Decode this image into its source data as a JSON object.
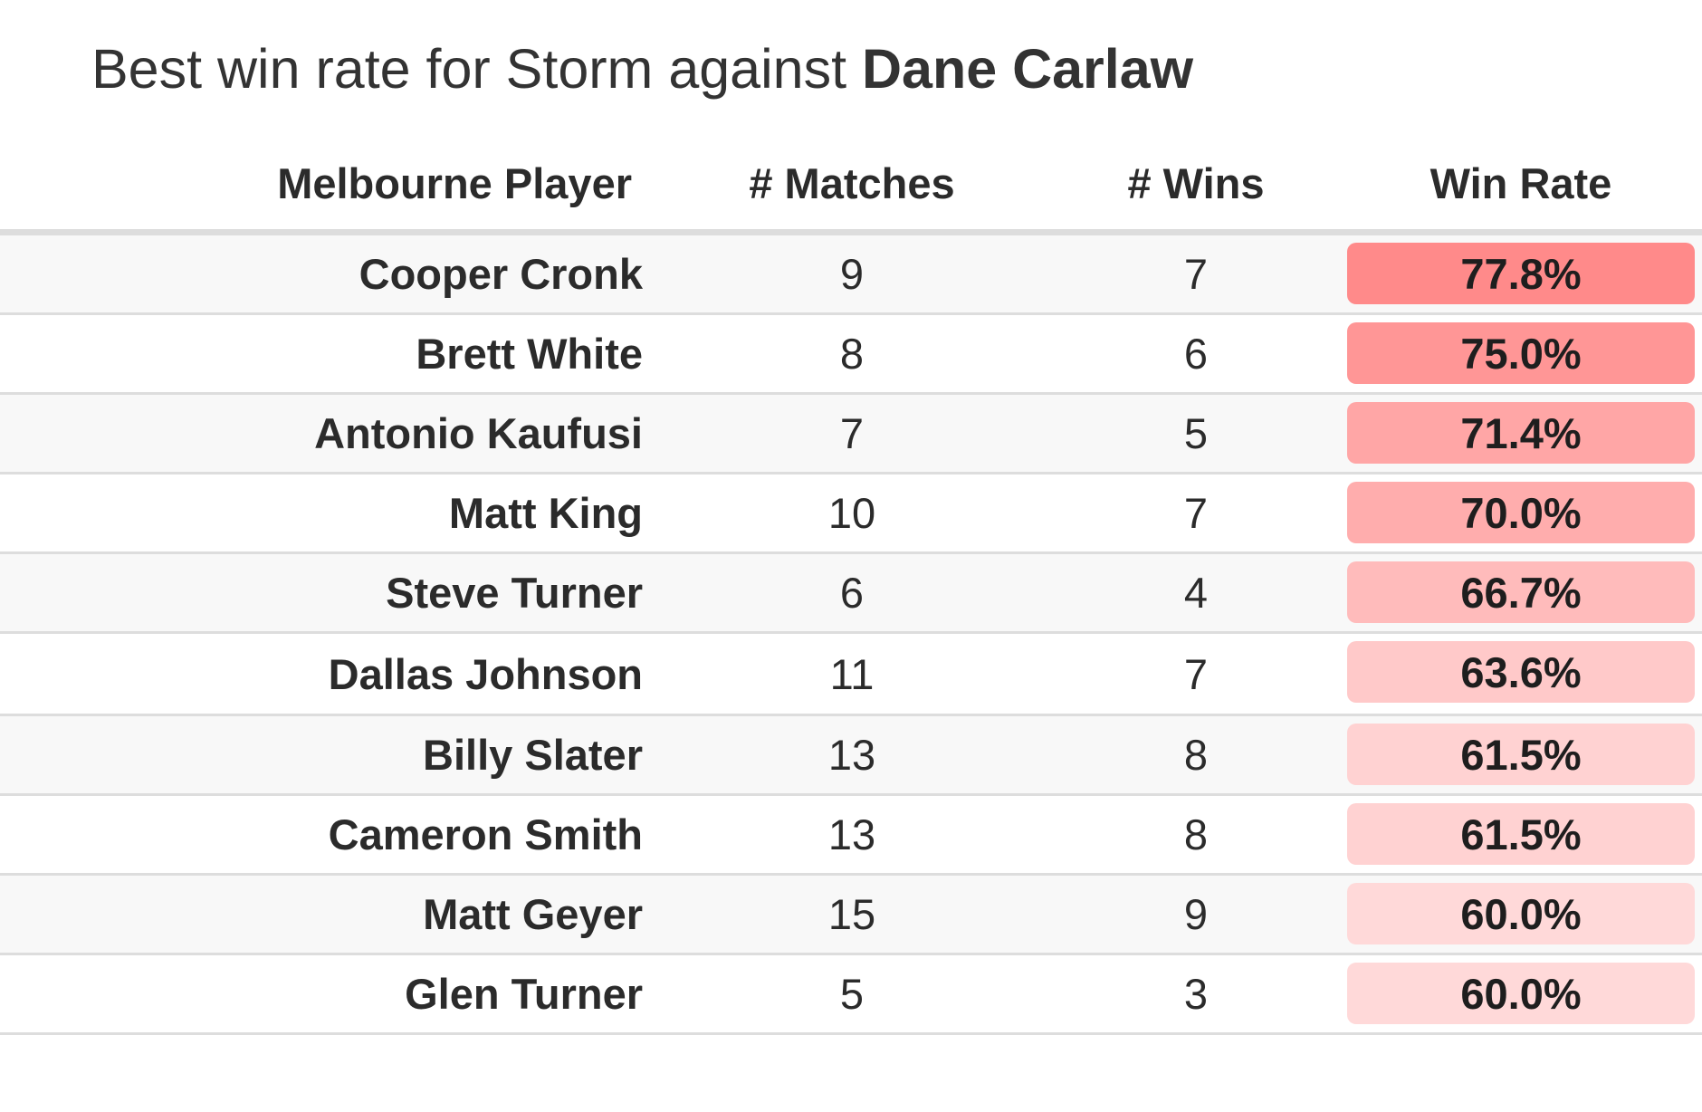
{
  "title": {
    "prefix": "Best win rate for Storm against ",
    "name": "Dane Carlaw"
  },
  "chart_data": {
    "type": "table",
    "columns": [
      "Melbourne Player",
      "# Matches",
      "# Wins",
      "Win Rate"
    ],
    "rows": [
      {
        "player": "Cooper Cronk",
        "matches": "9",
        "wins": "7",
        "win_rate": "77.8%",
        "rate_value": 77.8
      },
      {
        "player": "Brett White",
        "matches": "8",
        "wins": "6",
        "win_rate": "75.0%",
        "rate_value": 75.0
      },
      {
        "player": "Antonio Kaufusi",
        "matches": "7",
        "wins": "5",
        "win_rate": "71.4%",
        "rate_value": 71.4
      },
      {
        "player": "Matt King",
        "matches": "10",
        "wins": "7",
        "win_rate": "70.0%",
        "rate_value": 70.0
      },
      {
        "player": "Steve Turner",
        "matches": "6",
        "wins": "4",
        "win_rate": "66.7%",
        "rate_value": 66.7
      },
      {
        "player": "Dallas Johnson",
        "matches": "11",
        "wins": "7",
        "win_rate": "63.6%",
        "rate_value": 63.6
      },
      {
        "player": "Billy Slater",
        "matches": "13",
        "wins": "8",
        "win_rate": "61.5%",
        "rate_value": 61.5
      },
      {
        "player": "Cameron Smith",
        "matches": "13",
        "wins": "8",
        "win_rate": "61.5%",
        "rate_value": 61.5
      },
      {
        "player": "Matt Geyer",
        "matches": "15",
        "wins": "9",
        "win_rate": "60.0%",
        "rate_value": 60.0
      },
      {
        "player": "Glen Turner",
        "matches": "5",
        "wins": "3",
        "win_rate": "60.0%",
        "rate_value": 60.0
      }
    ],
    "highlight_color": "#ff8a8a",
    "highlight_color_light": "#ffd9d9"
  }
}
